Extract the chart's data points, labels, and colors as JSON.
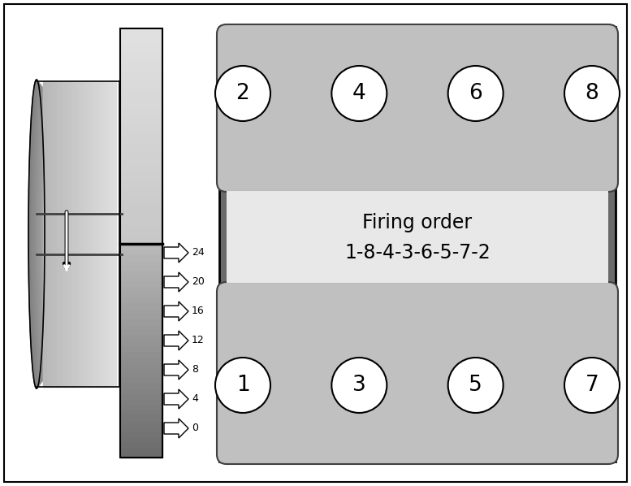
{
  "bg_color": "#ffffff",
  "top_bank_numbers": [
    "2",
    "4",
    "6",
    "8"
  ],
  "bottom_bank_numbers": [
    "1",
    "3",
    "5",
    "7"
  ],
  "firing_order_line1": "Firing order",
  "firing_order_line2": "1-8-4-3-6-5-7-2",
  "timing_marks": [
    "24",
    "20",
    "16",
    "12",
    "8",
    "4",
    "0"
  ]
}
